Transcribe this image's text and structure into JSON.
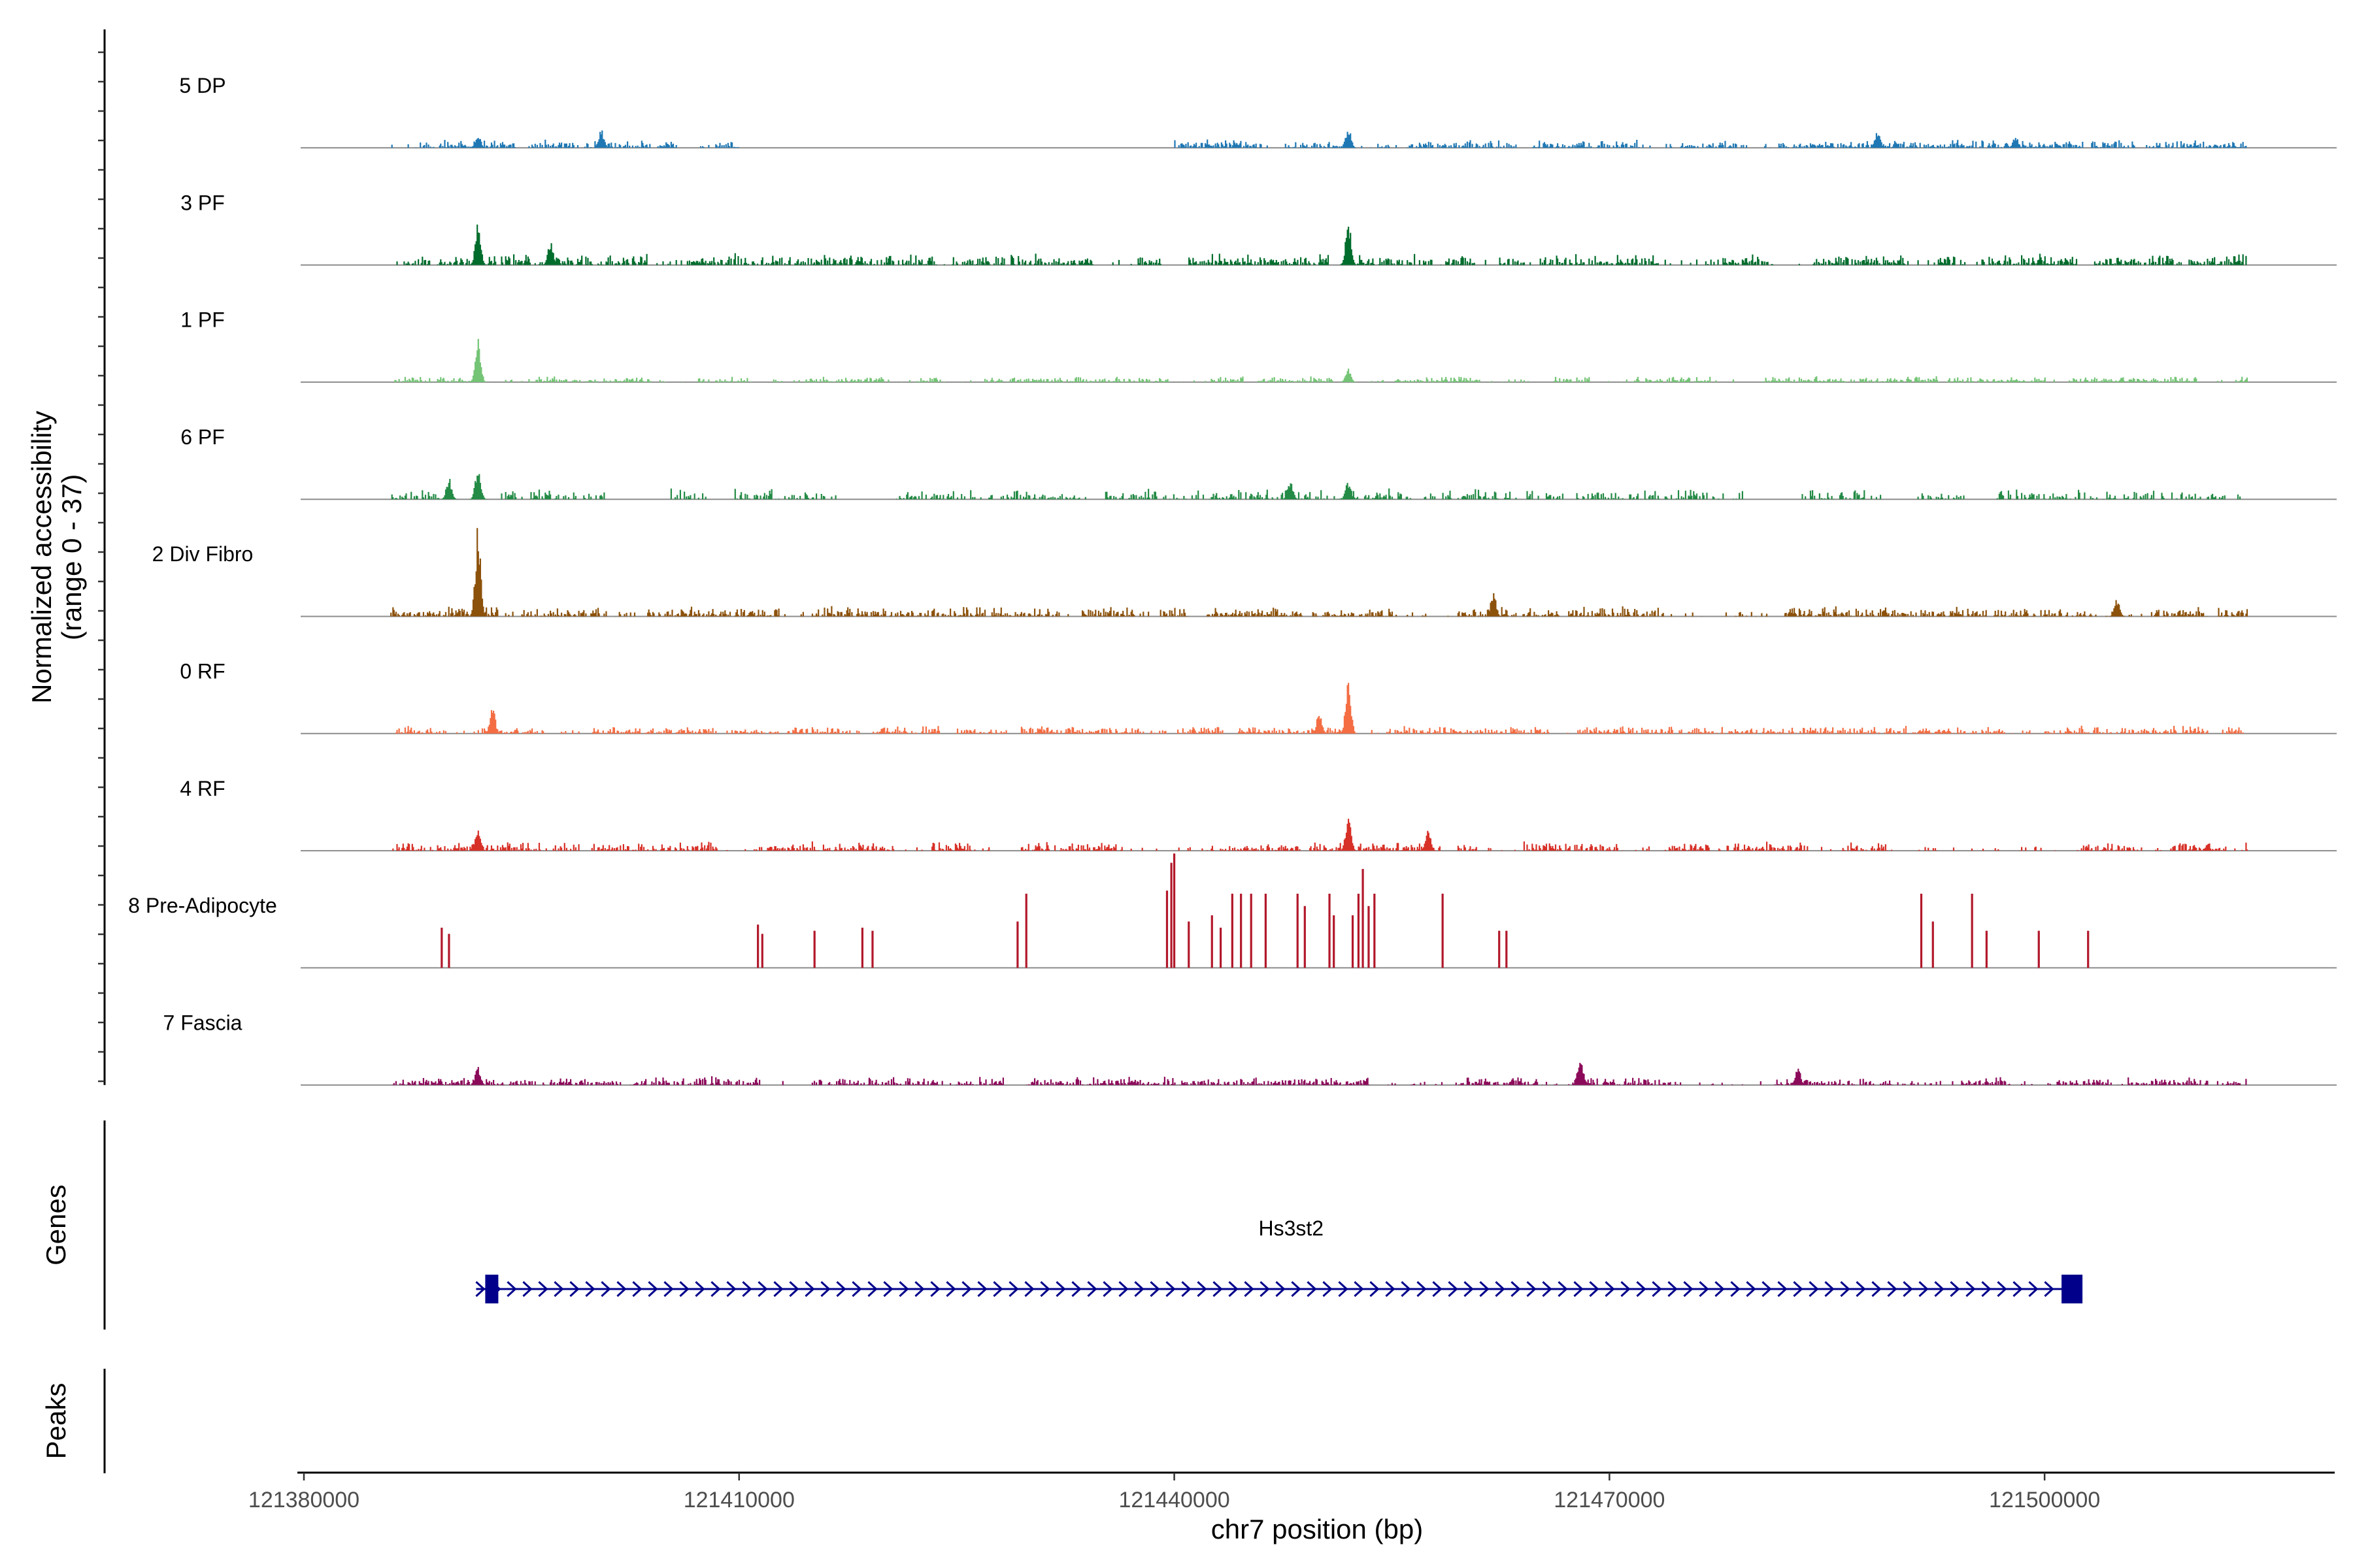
{
  "chart_data": {
    "type": "area",
    "title": "",
    "region": "chr7",
    "xlabel": "chr7 position (bp)",
    "ylabel_line1": "Normalized accessibility",
    "ylabel_line2": "(range 0 - 37)",
    "xlim": [
      121380000,
      121520000
    ],
    "ylim": [
      0,
      37
    ],
    "x_ticks": [
      121380000,
      121410000,
      121440000,
      121470000,
      121500000
    ],
    "x_tick_labels": [
      "121380000",
      "121410000",
      "121440000",
      "121470000",
      "121500000"
    ],
    "data_extent": [
      121386000,
      121514000
    ],
    "series": [
      {
        "name": "5 DP",
        "color": "#1f78b4",
        "style": "dense",
        "seed": 11,
        "base": 2.2,
        "peaks": [
          [
            121392000,
            5
          ],
          [
            121400500,
            6
          ],
          [
            121452000,
            7
          ],
          [
            121488500,
            6
          ],
          [
            121498000,
            4
          ]
        ],
        "gaps": [
          [
            121410000,
            121440000
          ]
        ]
      },
      {
        "name": "3 PF",
        "color": "#006d2c",
        "style": "dense",
        "seed": 23,
        "base": 3.0,
        "peaks": [
          [
            121392000,
            14
          ],
          [
            121397000,
            8
          ],
          [
            121452000,
            15
          ]
        ],
        "gaps": []
      },
      {
        "name": "1 PF",
        "color": "#74c476",
        "style": "dense",
        "seed": 37,
        "base": 1.6,
        "peaks": [
          [
            121392000,
            15
          ],
          [
            121452000,
            5
          ]
        ],
        "gaps": []
      },
      {
        "name": "6 PF",
        "color": "#238b45",
        "style": "sparse",
        "seed": 41,
        "base": 2.8,
        "peaks": [
          [
            121392000,
            11
          ],
          [
            121390000,
            7
          ],
          [
            121448000,
            6
          ],
          [
            121452000,
            6
          ]
        ],
        "gaps": []
      },
      {
        "name": "2 Div Fibro",
        "color": "#8c510a",
        "style": "dense",
        "seed": 53,
        "base": 2.6,
        "peaks": [
          [
            121392000,
            30
          ],
          [
            121462000,
            8
          ],
          [
            121505000,
            6
          ]
        ],
        "gaps": []
      },
      {
        "name": "0 RF",
        "color": "#f46d43",
        "style": "dense",
        "seed": 61,
        "base": 2.0,
        "peaks": [
          [
            121393000,
            9
          ],
          [
            121452000,
            18
          ],
          [
            121450000,
            7
          ]
        ],
        "gaps": []
      },
      {
        "name": "4 RF",
        "color": "#d73027",
        "style": "dense",
        "seed": 73,
        "base": 2.4,
        "peaks": [
          [
            121392000,
            8
          ],
          [
            121452000,
            12
          ],
          [
            121457500,
            7
          ]
        ],
        "gaps": []
      },
      {
        "name": "8 Pre-Adipocyte",
        "color": "#b2182b",
        "style": "spikes",
        "seed": 0,
        "base": 0,
        "spikes": [
          [
            121389500,
            13
          ],
          [
            121390000,
            11
          ],
          [
            121411300,
            14
          ],
          [
            121411600,
            11
          ],
          [
            121415200,
            12
          ],
          [
            121418500,
            13
          ],
          [
            121419200,
            12
          ],
          [
            121429200,
            15
          ],
          [
            121429800,
            24
          ],
          [
            121439500,
            25
          ],
          [
            121439800,
            34
          ],
          [
            121440000,
            37
          ],
          [
            121441000,
            15
          ],
          [
            121442600,
            17
          ],
          [
            121443200,
            13
          ],
          [
            121444000,
            24
          ],
          [
            121444600,
            24
          ],
          [
            121445300,
            24
          ],
          [
            121446300,
            24
          ],
          [
            121448500,
            24
          ],
          [
            121449000,
            20
          ],
          [
            121450700,
            24
          ],
          [
            121451000,
            17
          ],
          [
            121452300,
            17
          ],
          [
            121452700,
            24
          ],
          [
            121453000,
            32
          ],
          [
            121453400,
            20
          ],
          [
            121453800,
            24
          ],
          [
            121458500,
            24
          ],
          [
            121462400,
            12
          ],
          [
            121462900,
            12
          ],
          [
            121491500,
            24
          ],
          [
            121492300,
            15
          ],
          [
            121495000,
            24
          ],
          [
            121496000,
            12
          ],
          [
            121499600,
            12
          ],
          [
            121503000,
            12
          ]
        ],
        "peaks": [],
        "gaps": []
      },
      {
        "name": "7 Fascia",
        "color": "#8c0a5a",
        "style": "dense",
        "seed": 89,
        "base": 2.2,
        "peaks": [
          [
            121392000,
            6
          ],
          [
            121468000,
            10
          ],
          [
            121483000,
            6
          ]
        ],
        "gaps": []
      }
    ],
    "genes": [
      {
        "name": "Hs3st2",
        "start": 121392500,
        "end": 121501800,
        "strand": "+",
        "color": "#00008b"
      }
    ],
    "panels": {
      "genes_title": "Genes",
      "peaks_title": "Peaks"
    }
  }
}
